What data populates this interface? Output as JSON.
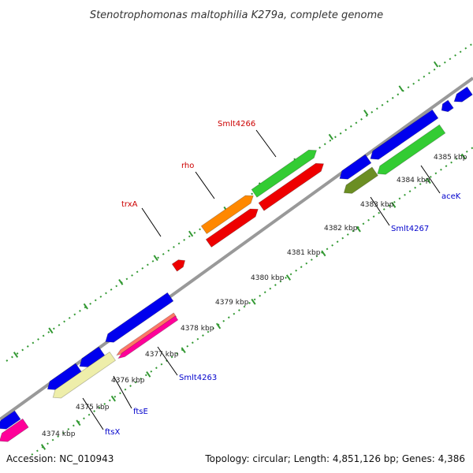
{
  "title": "Stenotrophomonas maltophilia K279a, complete genome",
  "footer": {
    "accession": "Accession: NC_010943",
    "summary": "Topology: circular; Length: 4,851,126 bp; Genes: 4,386"
  },
  "ruler": [
    {
      "text": "4374 kbp",
      "kbp": 4374
    },
    {
      "text": "4375 kbp",
      "kbp": 4375
    },
    {
      "text": "4376 kbp",
      "kbp": 4376
    },
    {
      "text": "4377 kbp",
      "kbp": 4377
    },
    {
      "text": "4378 kbp",
      "kbp": 4378
    },
    {
      "text": "4379 kbp",
      "kbp": 4379
    },
    {
      "text": "4380 kbp",
      "kbp": 4380
    },
    {
      "text": "4381 kbp",
      "kbp": 4381
    },
    {
      "text": "4382 kbp",
      "kbp": 4382
    },
    {
      "text": "4383 kbp",
      "kbp": 4383
    },
    {
      "text": "4384 kbp",
      "kbp": 4384
    },
    {
      "text": "4385 kbp",
      "kbp": 4385
    }
  ],
  "labels_forward": [
    {
      "text": "trxA",
      "color": "#cc0000"
    },
    {
      "text": "rho",
      "color": "#cc0000"
    },
    {
      "text": "Smlt4266",
      "color": "#cc0000"
    }
  ],
  "labels_reverse": [
    {
      "text": "ftsX",
      "color": "#0000cc"
    },
    {
      "text": "ftsE",
      "color": "#0000cc"
    },
    {
      "text": "Smlt4263",
      "color": "#0000cc"
    },
    {
      "text": "Smlt4267",
      "color": "#0000cc"
    },
    {
      "text": "aceK",
      "color": "#0000cc"
    }
  ],
  "colors": {
    "backbone": "#999999",
    "cds_forward": "#ee0000",
    "cds_reverse": "#0000ee",
    "orange": "#ff8800",
    "green": "#33cc33",
    "olive": "#6b8e23",
    "khaki": "#eeeeaa",
    "pink": "#ff0099",
    "salmon": "#ff7766",
    "dots": "#339933"
  }
}
